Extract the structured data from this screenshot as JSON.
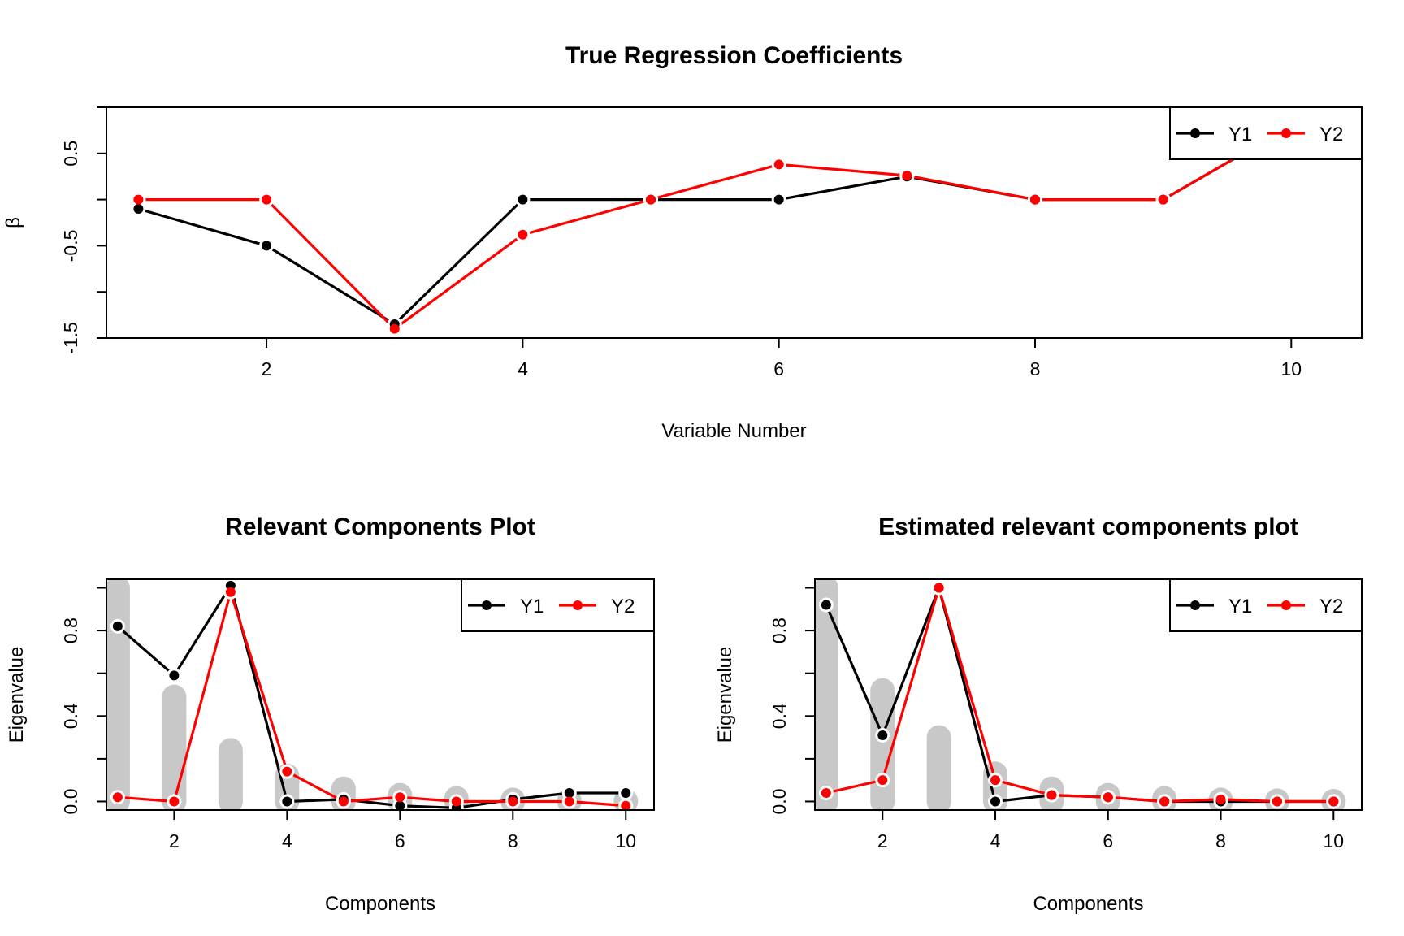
{
  "chart_data": [
    {
      "type": "line",
      "title": "True Regression Coefficients",
      "xlabel": "Variable Number",
      "ylabel": "β",
      "xlim": [
        0.75,
        10.55
      ],
      "ylim": [
        -1.5,
        1.0
      ],
      "xticks": [
        2,
        4,
        6,
        8,
        10
      ],
      "xtick_labels": [
        "2",
        "4",
        "6",
        "8",
        "10"
      ],
      "yticks": [
        -1.5,
        -1.0,
        -0.5,
        0.0,
        0.5,
        1.0
      ],
      "ytick_labels": [
        "-1.5",
        "",
        "-0.5",
        "",
        "0.5",
        ""
      ],
      "legend_placement": "top-right",
      "x": [
        1,
        2,
        3,
        4,
        5,
        6,
        7,
        8,
        9,
        10
      ],
      "series": [
        {
          "name": "Y1",
          "color": "#000000",
          "values": [
            -0.1,
            -0.5,
            -1.35,
            0.0,
            0.0,
            0.0,
            0.25,
            0.0,
            0.0,
            0.8
          ]
        },
        {
          "name": "Y2",
          "color": "#ff0000",
          "values": [
            0.0,
            0.0,
            -1.4,
            -0.38,
            0.0,
            0.38,
            0.26,
            0.0,
            0.0,
            0.8
          ]
        }
      ]
    },
    {
      "type": "line",
      "title": "Relevant Components Plot",
      "xlabel": "Components",
      "ylabel": "Eigenvalue",
      "xlim": [
        0.8,
        10.5
      ],
      "ylim": [
        -0.04,
        1.04
      ],
      "xticks": [
        2,
        4,
        6,
        8,
        10
      ],
      "xtick_labels": [
        "2",
        "4",
        "6",
        "8",
        "10"
      ],
      "yticks": [
        0.0,
        0.2,
        0.4,
        0.6,
        0.8,
        1.0
      ],
      "ytick_labels": [
        "0.0",
        "",
        "0.4",
        "",
        "0.8",
        ""
      ],
      "legend_placement": "top-right",
      "x": [
        1,
        2,
        3,
        4,
        5,
        6,
        7,
        8,
        9,
        10
      ],
      "eigenvalues": [
        1.0,
        0.49,
        0.24,
        0.12,
        0.06,
        0.03,
        0.015,
        0.008,
        0.004,
        0.002
      ],
      "series": [
        {
          "name": "Y1",
          "color": "#000000",
          "values": [
            0.82,
            0.59,
            1.01,
            0.0,
            0.01,
            -0.02,
            -0.03,
            0.01,
            0.04,
            0.04
          ]
        },
        {
          "name": "Y2",
          "color": "#ff0000",
          "values": [
            0.02,
            0.0,
            0.98,
            0.14,
            0.0,
            0.02,
            0.0,
            0.0,
            0.0,
            -0.02
          ]
        }
      ]
    },
    {
      "type": "line",
      "title": "Estimated relevant components plot",
      "xlabel": "Components",
      "ylabel": "Eigenvalue",
      "xlim": [
        0.8,
        10.5
      ],
      "ylim": [
        -0.04,
        1.04
      ],
      "xticks": [
        2,
        4,
        6,
        8,
        10
      ],
      "xtick_labels": [
        "2",
        "4",
        "6",
        "8",
        "10"
      ],
      "yticks": [
        0.0,
        0.2,
        0.4,
        0.6,
        0.8,
        1.0
      ],
      "ytick_labels": [
        "0.0",
        "",
        "0.4",
        "",
        "0.8",
        ""
      ],
      "legend_placement": "top-right",
      "x": [
        1,
        2,
        3,
        4,
        5,
        6,
        7,
        8,
        9,
        10
      ],
      "eigenvalues": [
        1.0,
        0.52,
        0.3,
        0.13,
        0.06,
        0.03,
        0.015,
        0.008,
        0.004,
        0.002
      ],
      "series": [
        {
          "name": "Y1",
          "color": "#000000",
          "values": [
            0.92,
            0.31,
            1.0,
            0.0,
            0.03,
            0.02,
            0.0,
            0.0,
            0.0,
            0.0
          ]
        },
        {
          "name": "Y2",
          "color": "#ff0000",
          "values": [
            0.04,
            0.1,
            1.0,
            0.1,
            0.03,
            0.02,
            0.0,
            0.01,
            0.0,
            0.0
          ]
        }
      ]
    }
  ]
}
